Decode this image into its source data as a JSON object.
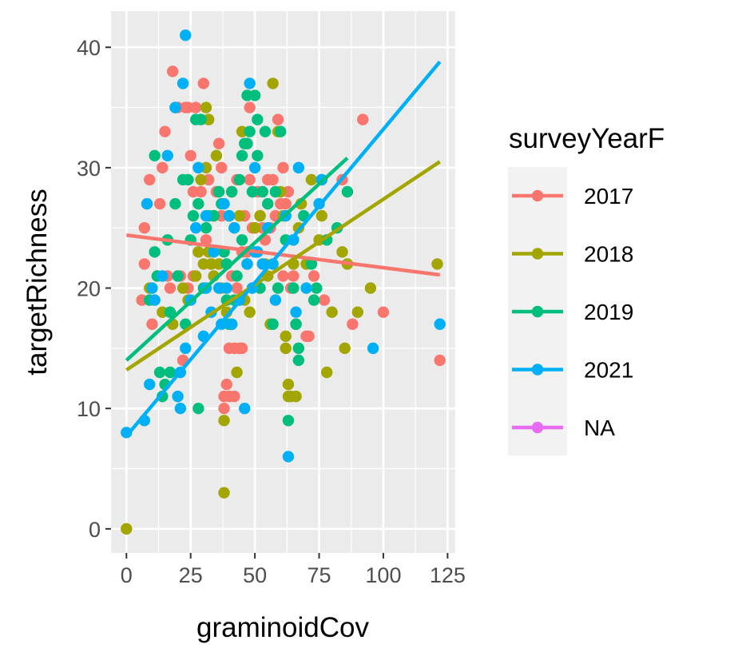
{
  "chart_data": {
    "type": "scatter",
    "xlabel": "graminoidCov",
    "ylabel": "targetRichness",
    "xlim": [
      -6,
      128
    ],
    "ylim": [
      -2,
      43
    ],
    "x_ticks": [
      "0",
      "25",
      "50",
      "75",
      "100",
      "125"
    ],
    "x_tick_values": [
      0,
      25,
      50,
      75,
      100,
      125
    ],
    "y_ticks": [
      "0",
      "10",
      "20",
      "30",
      "40"
    ],
    "y_tick_values": [
      0,
      10,
      20,
      30,
      40
    ],
    "grid": true,
    "panel_background": "#EBEBEB",
    "legend": {
      "title": "surveyYearF",
      "position": "right",
      "entries": [
        "2017",
        "2018",
        "2019",
        "2021",
        "NA"
      ]
    },
    "series": [
      {
        "name": "2017",
        "color": "#F8766D",
        "fit_line": [
          [
            0,
            24.4
          ],
          [
            122,
            21.1
          ]
        ],
        "points": [
          [
            6,
            19
          ],
          [
            7,
            25
          ],
          [
            7,
            22
          ],
          [
            8,
            27
          ],
          [
            9,
            29
          ],
          [
            10,
            17
          ],
          [
            12,
            21
          ],
          [
            13,
            27
          ],
          [
            14,
            30
          ],
          [
            15,
            33
          ],
          [
            16,
            21
          ],
          [
            17,
            20
          ],
          [
            18,
            38
          ],
          [
            19,
            35
          ],
          [
            20,
            35
          ],
          [
            21,
            21
          ],
          [
            22,
            14
          ],
          [
            23,
            35
          ],
          [
            24,
            35
          ],
          [
            24,
            20
          ],
          [
            25,
            31
          ],
          [
            26,
            28
          ],
          [
            26,
            21
          ],
          [
            27,
            35
          ],
          [
            29,
            28
          ],
          [
            30,
            37
          ],
          [
            31,
            24
          ],
          [
            32,
            29
          ],
          [
            33,
            22
          ],
          [
            34,
            26
          ],
          [
            35,
            28
          ],
          [
            36,
            32
          ],
          [
            37,
            26
          ],
          [
            37,
            30
          ],
          [
            38,
            10
          ],
          [
            38,
            11
          ],
          [
            39,
            12
          ],
          [
            40,
            11
          ],
          [
            40,
            15
          ],
          [
            41,
            21
          ],
          [
            41,
            28
          ],
          [
            42,
            15
          ],
          [
            42,
            11
          ],
          [
            43,
            20
          ],
          [
            43,
            29
          ],
          [
            44,
            15
          ],
          [
            45,
            15
          ],
          [
            45,
            23
          ],
          [
            46,
            26
          ],
          [
            47,
            23
          ],
          [
            48,
            29
          ],
          [
            48,
            35
          ],
          [
            49,
            25
          ],
          [
            50,
            25
          ],
          [
            51,
            28
          ],
          [
            52,
            26
          ],
          [
            53,
            25
          ],
          [
            54,
            24
          ],
          [
            55,
            29
          ],
          [
            56,
            25
          ],
          [
            57,
            29
          ],
          [
            58,
            26
          ],
          [
            59,
            34
          ],
          [
            60,
            27
          ],
          [
            61,
            21
          ],
          [
            61,
            30
          ],
          [
            62,
            27
          ],
          [
            63,
            28
          ],
          [
            64,
            20
          ],
          [
            65,
            21
          ],
          [
            66,
            17
          ],
          [
            68,
            27
          ],
          [
            70,
            16
          ],
          [
            71,
            16
          ],
          [
            73,
            21
          ],
          [
            77,
            19
          ],
          [
            84,
            29
          ],
          [
            88,
            17
          ],
          [
            92,
            34
          ],
          [
            100,
            18
          ],
          [
            122,
            14
          ]
        ]
      },
      {
        "name": "2018",
        "color": "#A3A500",
        "fit_line": [
          [
            0,
            13.2
          ],
          [
            122,
            30.5
          ]
        ],
        "points": [
          [
            0,
            0
          ],
          [
            9,
            20
          ],
          [
            14,
            18
          ],
          [
            18,
            17
          ],
          [
            22,
            20
          ],
          [
            24,
            19
          ],
          [
            27,
            21
          ],
          [
            28,
            23
          ],
          [
            29,
            29
          ],
          [
            30,
            22
          ],
          [
            31,
            35
          ],
          [
            31,
            30
          ],
          [
            32,
            34
          ],
          [
            32,
            23
          ],
          [
            33,
            22
          ],
          [
            34,
            21
          ],
          [
            35,
            31
          ],
          [
            36,
            22
          ],
          [
            37,
            20
          ],
          [
            38,
            9
          ],
          [
            38,
            3
          ],
          [
            39,
            18
          ],
          [
            40,
            26
          ],
          [
            41,
            17
          ],
          [
            42,
            25
          ],
          [
            43,
            13
          ],
          [
            44,
            26
          ],
          [
            45,
            33
          ],
          [
            46,
            19
          ],
          [
            47,
            22
          ],
          [
            48,
            18
          ],
          [
            50,
            25
          ],
          [
            52,
            26
          ],
          [
            54,
            22
          ],
          [
            55,
            21
          ],
          [
            56,
            17
          ],
          [
            57,
            37
          ],
          [
            59,
            33
          ],
          [
            60,
            28
          ],
          [
            61,
            26
          ],
          [
            62,
            15
          ],
          [
            62,
            16
          ],
          [
            63,
            12
          ],
          [
            63,
            11
          ],
          [
            64,
            11
          ],
          [
            65,
            22
          ],
          [
            65,
            24
          ],
          [
            66,
            11
          ],
          [
            67,
            25
          ],
          [
            68,
            27
          ],
          [
            70,
            22
          ],
          [
            72,
            29
          ],
          [
            75,
            24
          ],
          [
            76,
            26
          ],
          [
            78,
            13
          ],
          [
            80,
            18
          ],
          [
            84,
            23
          ],
          [
            85,
            15
          ],
          [
            86,
            22
          ],
          [
            90,
            18
          ],
          [
            95,
            20
          ],
          [
            121,
            22
          ]
        ]
      },
      {
        "name": "2019",
        "color": "#00BF7D",
        "fit_line": [
          [
            0,
            14.0
          ],
          [
            86,
            30.8
          ]
        ],
        "points": [
          [
            9,
            19
          ],
          [
            11,
            23
          ],
          [
            11,
            31
          ],
          [
            12,
            21
          ],
          [
            13,
            13
          ],
          [
            14,
            11
          ],
          [
            15,
            12
          ],
          [
            16,
            24
          ],
          [
            17,
            13
          ],
          [
            17,
            18
          ],
          [
            19,
            27
          ],
          [
            20,
            21
          ],
          [
            22,
            29
          ],
          [
            23,
            17
          ],
          [
            24,
            29
          ],
          [
            25,
            24
          ],
          [
            26,
            26
          ],
          [
            27,
            34
          ],
          [
            28,
            10
          ],
          [
            28,
            27
          ],
          [
            29,
            34
          ],
          [
            30,
            20
          ],
          [
            31,
            25
          ],
          [
            32,
            26
          ],
          [
            34,
            26
          ],
          [
            36,
            28
          ],
          [
            37,
            27
          ],
          [
            38,
            23
          ],
          [
            39,
            22
          ],
          [
            39,
            19
          ],
          [
            40,
            17
          ],
          [
            41,
            28
          ],
          [
            42,
            19
          ],
          [
            43,
            21
          ],
          [
            44,
            29
          ],
          [
            45,
            31
          ],
          [
            45,
            24
          ],
          [
            46,
            32
          ],
          [
            47,
            36
          ],
          [
            47,
            32
          ],
          [
            48,
            33
          ],
          [
            49,
            28
          ],
          [
            50,
            36
          ],
          [
            51,
            31
          ],
          [
            51,
            34
          ],
          [
            52,
            20
          ],
          [
            53,
            28
          ],
          [
            54,
            33
          ],
          [
            55,
            27
          ],
          [
            57,
            17
          ],
          [
            58,
            28
          ],
          [
            59,
            20
          ],
          [
            60,
            33
          ],
          [
            62,
            24
          ],
          [
            63,
            9
          ],
          [
            65,
            20
          ],
          [
            66,
            17
          ],
          [
            67,
            14
          ],
          [
            67,
            15
          ],
          [
            69,
            26
          ],
          [
            72,
            22
          ],
          [
            73,
            19
          ],
          [
            74,
            20
          ],
          [
            76,
            29
          ],
          [
            78,
            24
          ],
          [
            82,
            25
          ],
          [
            86,
            28
          ]
        ]
      },
      {
        "name": "2021",
        "color": "#00B0F6",
        "fit_line": [
          [
            0,
            7.7
          ],
          [
            122,
            38.8
          ]
        ],
        "points": [
          [
            0,
            8
          ],
          [
            7,
            9
          ],
          [
            8,
            27
          ],
          [
            9,
            12
          ],
          [
            10,
            20
          ],
          [
            11,
            19
          ],
          [
            14,
            21
          ],
          [
            16,
            31
          ],
          [
            19,
            35
          ],
          [
            20,
            11
          ],
          [
            21,
            10
          ],
          [
            21,
            13
          ],
          [
            22,
            37
          ],
          [
            23,
            15
          ],
          [
            23,
            41
          ],
          [
            25,
            19
          ],
          [
            27,
            25
          ],
          [
            28,
            30
          ],
          [
            30,
            16
          ],
          [
            31,
            20
          ],
          [
            31,
            26
          ],
          [
            33,
            18
          ],
          [
            34,
            23
          ],
          [
            36,
            20
          ],
          [
            37,
            17
          ],
          [
            38,
            27
          ],
          [
            39,
            20
          ],
          [
            40,
            26
          ],
          [
            41,
            17
          ],
          [
            42,
            25
          ],
          [
            44,
            19
          ],
          [
            46,
            10
          ],
          [
            47,
            22
          ],
          [
            48,
            37
          ],
          [
            49,
            20
          ],
          [
            50,
            30
          ],
          [
            50,
            23
          ],
          [
            51,
            23
          ],
          [
            53,
            22
          ],
          [
            55,
            25
          ],
          [
            57,
            22
          ],
          [
            58,
            19
          ],
          [
            62,
            26
          ],
          [
            63,
            6
          ],
          [
            65,
            24
          ],
          [
            66,
            18
          ],
          [
            67,
            30
          ],
          [
            70,
            20
          ],
          [
            75,
            27
          ],
          [
            76,
            29
          ],
          [
            96,
            15
          ],
          [
            122,
            17
          ]
        ]
      },
      {
        "name": "NA",
        "color": "#E76BF3",
        "points": []
      }
    ]
  }
}
